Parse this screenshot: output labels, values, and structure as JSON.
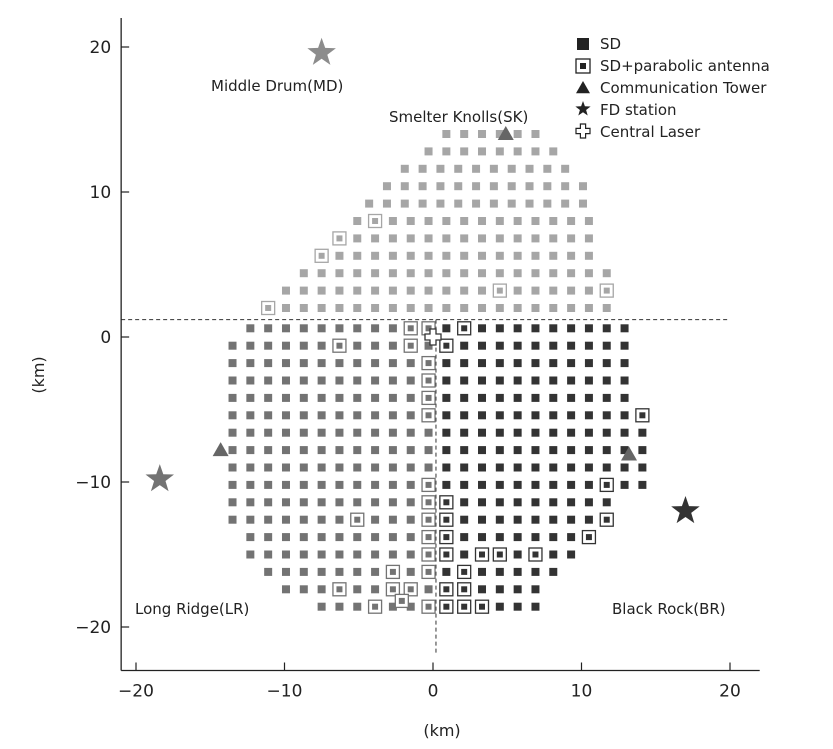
{
  "chart_data": {
    "type": "scatter",
    "xlabel": "(km)",
    "ylabel": "(km)",
    "xlim": [
      -21,
      22
    ],
    "ylim": [
      -23,
      22
    ],
    "x_ticks": [
      -20,
      -10,
      0,
      10,
      20
    ],
    "y_ticks": [
      20,
      10,
      0,
      -10,
      -20
    ],
    "x_tick_labels": [
      "−20",
      "−10",
      "0",
      "10",
      "20"
    ],
    "y_tick_labels": [
      "20",
      "10",
      "0",
      "−10",
      "−20"
    ],
    "grid": false,
    "legend_position": "top-right",
    "legend": [
      {
        "label": "SD",
        "marker": "square"
      },
      {
        "label": "SD+parabolic antenna",
        "marker": "boxed-square"
      },
      {
        "label": "Communication Tower",
        "marker": "triangle"
      },
      {
        "label": "FD station",
        "marker": "star"
      },
      {
        "label": "Central Laser",
        "marker": "cross"
      }
    ],
    "divider_lines": {
      "horizontal_y": 1.2,
      "vertical_x": 0.2
    },
    "sd_grid": {
      "spacing_km": 1.2,
      "rows": [
        {
          "y": 14.0,
          "x_min": 0.9,
          "x_max": 7.7
        },
        {
          "y": 12.8,
          "x_min": -0.3,
          "x_max": 8.3
        },
        {
          "y": 11.6,
          "x_min": -1.9,
          "x_max": 9.5
        },
        {
          "y": 10.4,
          "x_min": -3.1,
          "x_max": 10.3
        },
        {
          "y": 9.2,
          "x_min": -4.3,
          "x_max": 10.3
        },
        {
          "y": 8.0,
          "x_min": -5.1,
          "x_max": 11.1
        },
        {
          "y": 6.8,
          "x_min": -6.3,
          "x_max": 11.1
        },
        {
          "y": 5.6,
          "x_min": -7.5,
          "x_max": 11.1
        },
        {
          "y": 4.4,
          "x_min": -8.7,
          "x_max": 11.9
        },
        {
          "y": 3.2,
          "x_min": -9.9,
          "x_max": 11.9
        },
        {
          "y": 2.0,
          "x_min": -11.1,
          "x_max": 11.9
        },
        {
          "y": 0.6,
          "x_min": -12.3,
          "x_max": 13.1
        },
        {
          "y": -0.6,
          "x_min": -13.5,
          "x_max": 13.1
        },
        {
          "y": -1.8,
          "x_min": -13.5,
          "x_max": 13.1
        },
        {
          "y": -3.0,
          "x_min": -13.5,
          "x_max": 13.1
        },
        {
          "y": -4.2,
          "x_min": -13.5,
          "x_max": 13.1
        },
        {
          "y": -5.4,
          "x_min": -13.5,
          "x_max": 14.3
        },
        {
          "y": -6.6,
          "x_min": -13.5,
          "x_max": 14.3
        },
        {
          "y": -7.8,
          "x_min": -13.5,
          "x_max": 14.3
        },
        {
          "y": -9.0,
          "x_min": -13.5,
          "x_max": 14.3
        },
        {
          "y": -10.2,
          "x_min": -13.5,
          "x_max": 14.3
        },
        {
          "y": -11.4,
          "x_min": -13.5,
          "x_max": 11.9
        },
        {
          "y": -12.6,
          "x_min": -13.5,
          "x_max": 11.9
        },
        {
          "y": -13.8,
          "x_min": -12.3,
          "x_max": 10.7
        },
        {
          "y": -15.0,
          "x_min": -12.3,
          "x_max": 9.5
        },
        {
          "y": -16.2,
          "x_min": -11.1,
          "x_max": 8.3
        },
        {
          "y": -17.4,
          "x_min": -9.9,
          "x_max": 7.1
        },
        {
          "y": -18.6,
          "x_min": -7.5,
          "x_max": 7.1
        }
      ]
    },
    "antenna_sds": [
      [
        -6.3,
        6.8
      ],
      [
        -7.5,
        5.6
      ],
      [
        -3.9,
        8.0
      ],
      [
        -11.1,
        2.0
      ],
      [
        11.9,
        3.2
      ],
      [
        4.7,
        3.4
      ],
      [
        -1.5,
        0.6
      ],
      [
        -0.3,
        0.6
      ],
      [
        2.1,
        0.6
      ],
      [
        -6.3,
        -0.6
      ],
      [
        -1.5,
        -0.6
      ],
      [
        0.9,
        -0.6
      ],
      [
        -0.3,
        -1.8
      ],
      [
        -0.3,
        -3.0
      ],
      [
        -0.3,
        -4.2
      ],
      [
        -0.3,
        -5.4
      ],
      [
        14.3,
        -5.4
      ],
      [
        -0.3,
        -10.2
      ],
      [
        -0.3,
        -11.4
      ],
      [
        0.9,
        -11.4
      ],
      [
        -0.3,
        -12.6
      ],
      [
        0.9,
        -12.6
      ],
      [
        -5.1,
        -12.6
      ],
      [
        11.9,
        -10.4
      ],
      [
        11.9,
        -12.6
      ],
      [
        10.7,
        -13.8
      ],
      [
        -0.3,
        -13.8
      ],
      [
        0.9,
        -13.8
      ],
      [
        -0.3,
        -15.0
      ],
      [
        0.9,
        -15.0
      ],
      [
        3.3,
        -15.0
      ],
      [
        4.5,
        -15.0
      ],
      [
        6.9,
        -15.0
      ],
      [
        -0.3,
        -16.2
      ],
      [
        2.1,
        -16.2
      ],
      [
        -2.7,
        -16.2
      ],
      [
        -6.3,
        -17.4
      ],
      [
        -2.7,
        -17.4
      ],
      [
        -1.5,
        -17.4
      ],
      [
        0.9,
        -17.4
      ],
      [
        2.1,
        -17.4
      ],
      [
        -4.1,
        -18.6
      ],
      [
        -2.1,
        -18.2
      ],
      [
        -0.3,
        -18.6
      ],
      [
        0.9,
        -18.6
      ],
      [
        2.1,
        -18.6
      ],
      [
        3.3,
        -18.6
      ]
    ],
    "fd_stations": [
      {
        "name": "Middle Drum(MD)",
        "x": -7.5,
        "y": 19.6,
        "color": "#8c8c8c"
      },
      {
        "name": "Long Ridge(LR)",
        "x": -18.4,
        "y": -9.8,
        "color": "#737373"
      },
      {
        "name": "Black Rock(BR)",
        "x": 17.0,
        "y": -12.0,
        "color": "#333333"
      }
    ],
    "communication_towers": [
      {
        "name": "Smelter Knolls(SK)",
        "x": 4.9,
        "y": 14.0
      },
      {
        "name": "",
        "x": -14.3,
        "y": -7.8
      },
      {
        "name": "",
        "x": 13.2,
        "y": -8.1
      }
    ],
    "central_laser": {
      "x": 0.0,
      "y": 0.0
    },
    "colors": {
      "sd_smelter_knolls": "#a6a6a6",
      "sd_long_ridge": "#737373",
      "sd_black_rock": "#333333",
      "tower": "#666666",
      "axis": "#222222",
      "legend_marker": "#222222"
    }
  }
}
